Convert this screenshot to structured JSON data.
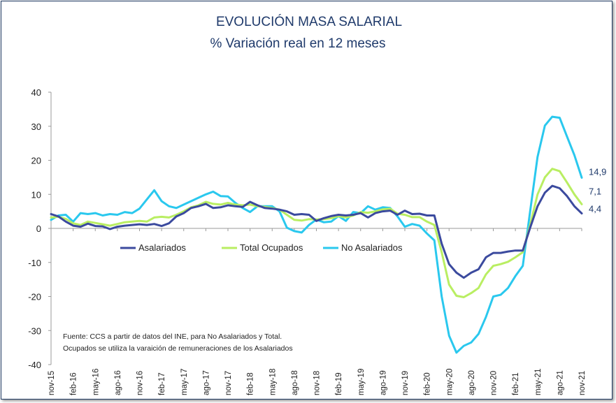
{
  "chart_data": {
    "type": "line",
    "title": "EVOLUCIÓN MASA SALARIAL",
    "subtitle": "% Variación real en 12 meses",
    "xlabel": "",
    "ylabel": "",
    "ylim": [
      -40,
      40
    ],
    "yticks": [
      40,
      30,
      20,
      10,
      0,
      -10,
      -20,
      -30,
      -40
    ],
    "x_tick_labels": [
      "nov-15",
      "feb-16",
      "may-16",
      "ago-16",
      "nov-16",
      "feb-17",
      "may-17",
      "ago-17",
      "nov-17",
      "feb-18",
      "may-18",
      "ago-18",
      "nov-18",
      "feb-19",
      "may-19",
      "ago-19",
      "nov-19",
      "feb-20",
      "may-20",
      "ago-20",
      "nov-20",
      "feb-21",
      "may-21",
      "ago-21",
      "nov-21"
    ],
    "x_start": "nov-15",
    "x_end": "nov-21",
    "grid": false,
    "legend_position": "middle-left",
    "series": [
      {
        "name": "Asalariados",
        "color": "#3b4a9e",
        "end_label": "4,4",
        "values": [
          4.2,
          3.5,
          2.0,
          0.8,
          0.5,
          1.4,
          0.7,
          0.6,
          -0.2,
          0.5,
          0.8,
          1.0,
          1.2,
          1.0,
          1.3,
          0.7,
          1.5,
          3.5,
          4.5,
          6.0,
          6.5,
          7.2,
          6.0,
          6.2,
          6.8,
          6.5,
          6.3,
          7.8,
          6.8,
          6.0,
          5.8,
          5.5,
          5.0,
          4.0,
          4.2,
          4.0,
          2.2,
          3.0,
          3.6,
          4.0,
          3.8,
          4.0,
          4.5,
          3.2,
          4.5,
          5.0,
          5.2,
          4.0,
          5.2,
          4.2,
          4.3,
          3.8,
          3.8,
          -4.5,
          -10.5,
          -13.0,
          -14.5,
          -13.0,
          -12.0,
          -8.5,
          -7.2,
          -7.2,
          -6.8,
          -6.5,
          -6.5,
          0.2,
          6.5,
          10.5,
          12.5,
          11.8,
          9.5,
          6.5,
          4.4
        ]
      },
      {
        "name": "Total Ocupados",
        "color": "#b9ee62",
        "end_label": "7,1",
        "values": [
          3.2,
          3.4,
          2.8,
          1.5,
          1.0,
          2.0,
          1.6,
          1.2,
          0.8,
          1.3,
          1.8,
          2.0,
          2.2,
          2.0,
          3.2,
          3.4,
          3.2,
          4.0,
          5.0,
          6.2,
          6.8,
          7.8,
          7.2,
          7.0,
          7.5,
          7.0,
          6.8,
          7.0,
          6.5,
          6.3,
          6.0,
          5.5,
          4.0,
          2.5,
          2.3,
          2.7,
          2.6,
          2.7,
          3.0,
          3.6,
          3.2,
          3.8,
          4.8,
          4.6,
          5.0,
          5.6,
          5.8,
          4.3,
          4.0,
          3.3,
          3.3,
          2.0,
          1.0,
          -7.0,
          -16.5,
          -19.8,
          -20.2,
          -19.0,
          -17.5,
          -13.5,
          -11.0,
          -10.5,
          -9.8,
          -8.5,
          -7.0,
          1.0,
          10.0,
          15.0,
          17.5,
          16.8,
          13.5,
          10.0,
          7.1
        ]
      },
      {
        "name": "No Asalariados",
        "color": "#2ac8ee",
        "end_label": "14,9",
        "values": [
          2.5,
          3.8,
          4.0,
          2.0,
          4.5,
          4.2,
          4.5,
          3.8,
          4.2,
          4.0,
          4.8,
          4.5,
          5.8,
          8.5,
          11.2,
          8.0,
          6.5,
          6.0,
          7.0,
          8.0,
          9.0,
          10.0,
          10.8,
          9.5,
          9.4,
          7.5,
          6.0,
          4.8,
          6.5,
          6.5,
          6.5,
          5.0,
          0.2,
          -0.8,
          -1.2,
          1.0,
          2.6,
          1.8,
          2.0,
          3.6,
          2.2,
          4.8,
          4.5,
          6.5,
          5.5,
          6.2,
          6.0,
          3.5,
          0.5,
          1.3,
          0.8,
          -1.5,
          -3.5,
          -20.0,
          -31.5,
          -36.5,
          -34.5,
          -33.5,
          -31.0,
          -26.0,
          -20.0,
          -19.5,
          -17.5,
          -14.0,
          -11.0,
          5.0,
          21.0,
          30.2,
          32.8,
          32.5,
          27.0,
          21.5,
          14.9
        ]
      }
    ]
  },
  "source_note": {
    "line1": "Fuente: CCS a partir de datos del INE, para No Asalariados y Total.",
    "line2": "Ocupados se utiliza la varaición de remuneraciones de los Asalariados"
  }
}
